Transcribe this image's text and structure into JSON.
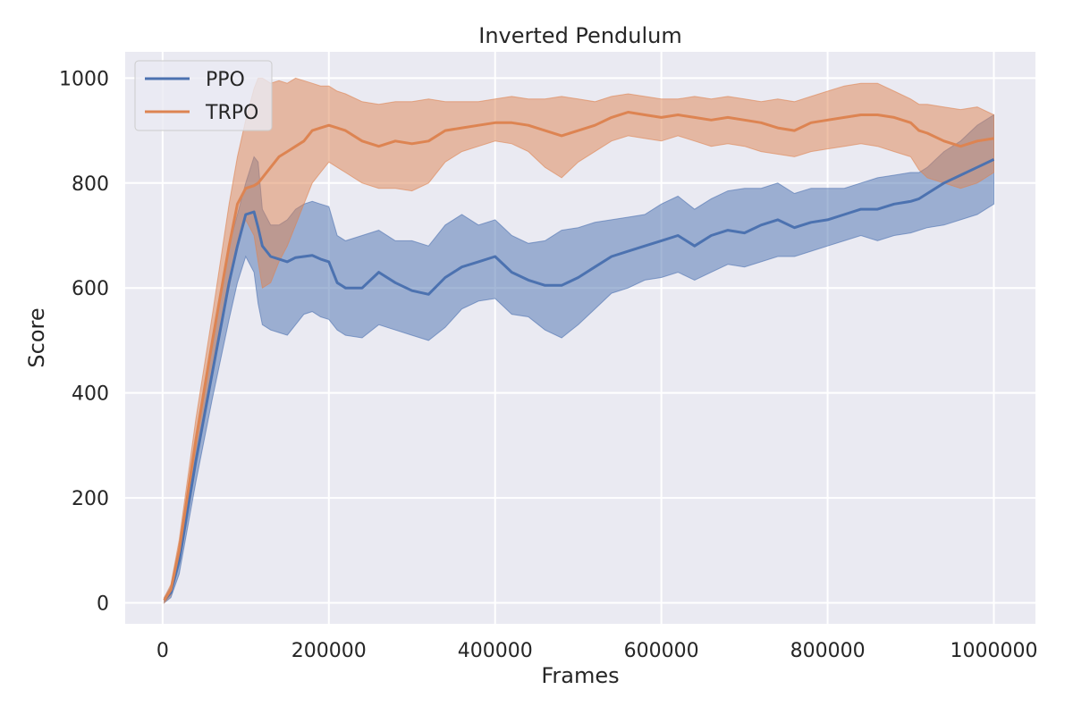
{
  "chart_data": {
    "type": "line",
    "title": "Inverted Pendulum",
    "xlabel": "Frames",
    "ylabel": "Score",
    "xlim": [
      -45000,
      1050000
    ],
    "ylim": [
      -40,
      1050
    ],
    "xticks": [
      0,
      200000,
      400000,
      600000,
      800000,
      1000000
    ],
    "xtick_labels": [
      "0",
      "200000",
      "400000",
      "600000",
      "800000",
      "1000000"
    ],
    "yticks": [
      0,
      200,
      400,
      600,
      800,
      1000
    ],
    "ytick_labels": [
      "0",
      "200",
      "400",
      "600",
      "800",
      "1000"
    ],
    "grid": true,
    "legend_position": "top-left",
    "x": [
      2000,
      10000,
      20000,
      40000,
      60000,
      80000,
      90000,
      100000,
      110000,
      115000,
      120000,
      130000,
      140000,
      150000,
      160000,
      170000,
      180000,
      190000,
      200000,
      210000,
      220000,
      240000,
      260000,
      280000,
      300000,
      320000,
      340000,
      360000,
      380000,
      400000,
      420000,
      440000,
      460000,
      480000,
      500000,
      520000,
      540000,
      560000,
      580000,
      600000,
      620000,
      640000,
      660000,
      680000,
      700000,
      720000,
      740000,
      760000,
      780000,
      800000,
      820000,
      840000,
      860000,
      880000,
      900000,
      910000,
      920000,
      940000,
      960000,
      980000,
      1000000
    ],
    "series": [
      {
        "name": "PPO",
        "color": "#4c72b0",
        "mean": [
          5,
          20,
          80,
          270,
          440,
          610,
          680,
          740,
          745,
          715,
          680,
          660,
          655,
          650,
          658,
          660,
          662,
          655,
          650,
          610,
          600,
          600,
          630,
          610,
          595,
          588,
          620,
          640,
          650,
          660,
          630,
          615,
          605,
          605,
          620,
          640,
          660,
          670,
          680,
          690,
          700,
          680,
          700,
          710,
          705,
          720,
          730,
          715,
          725,
          730,
          740,
          750,
          750,
          760,
          765,
          770,
          780,
          800,
          815,
          830,
          845
        ],
        "lower": [
          0,
          10,
          55,
          230,
          390,
          540,
          610,
          660,
          630,
          570,
          530,
          520,
          515,
          510,
          530,
          550,
          555,
          545,
          540,
          520,
          510,
          505,
          530,
          520,
          510,
          500,
          525,
          560,
          575,
          580,
          550,
          545,
          520,
          505,
          530,
          560,
          590,
          600,
          615,
          620,
          630,
          615,
          630,
          645,
          640,
          650,
          660,
          660,
          670,
          680,
          690,
          700,
          690,
          700,
          705,
          710,
          715,
          720,
          730,
          740,
          760
        ],
        "upper": [
          10,
          30,
          105,
          310,
          490,
          680,
          740,
          800,
          850,
          840,
          750,
          720,
          720,
          730,
          750,
          760,
          765,
          760,
          755,
          700,
          690,
          700,
          710,
          690,
          690,
          680,
          720,
          740,
          720,
          730,
          700,
          685,
          690,
          710,
          715,
          725,
          730,
          735,
          740,
          760,
          775,
          750,
          770,
          785,
          790,
          790,
          800,
          780,
          790,
          790,
          790,
          800,
          810,
          815,
          820,
          820,
          830,
          860,
          880,
          910,
          930
        ]
      },
      {
        "name": "TRPO",
        "color": "#dd8452",
        "mean": [
          5,
          25,
          100,
          310,
          500,
          680,
          760,
          790,
          795,
          800,
          810,
          830,
          850,
          860,
          870,
          880,
          900,
          905,
          910,
          905,
          900,
          880,
          870,
          880,
          875,
          880,
          900,
          905,
          910,
          915,
          915,
          910,
          900,
          890,
          900,
          910,
          925,
          935,
          930,
          925,
          930,
          925,
          920,
          925,
          920,
          915,
          905,
          900,
          915,
          920,
          925,
          930,
          930,
          925,
          915,
          900,
          895,
          880,
          870,
          880,
          885
        ],
        "lower": [
          0,
          15,
          80,
          270,
          450,
          600,
          680,
          730,
          700,
          650,
          600,
          610,
          650,
          680,
          720,
          760,
          800,
          820,
          840,
          830,
          820,
          800,
          790,
          790,
          785,
          800,
          840,
          860,
          870,
          880,
          875,
          860,
          830,
          810,
          840,
          860,
          880,
          890,
          885,
          880,
          890,
          880,
          870,
          875,
          870,
          860,
          855,
          850,
          860,
          865,
          870,
          875,
          870,
          860,
          850,
          825,
          810,
          800,
          790,
          800,
          820
        ],
        "upper": [
          10,
          35,
          120,
          350,
          550,
          760,
          850,
          920,
          980,
          1000,
          1000,
          990,
          995,
          990,
          1000,
          995,
          990,
          985,
          985,
          975,
          970,
          955,
          950,
          955,
          955,
          960,
          955,
          955,
          955,
          960,
          965,
          960,
          960,
          965,
          960,
          955,
          965,
          970,
          965,
          960,
          960,
          965,
          960,
          965,
          960,
          955,
          960,
          955,
          965,
          975,
          985,
          990,
          990,
          975,
          960,
          950,
          950,
          945,
          940,
          945,
          930
        ]
      }
    ]
  }
}
